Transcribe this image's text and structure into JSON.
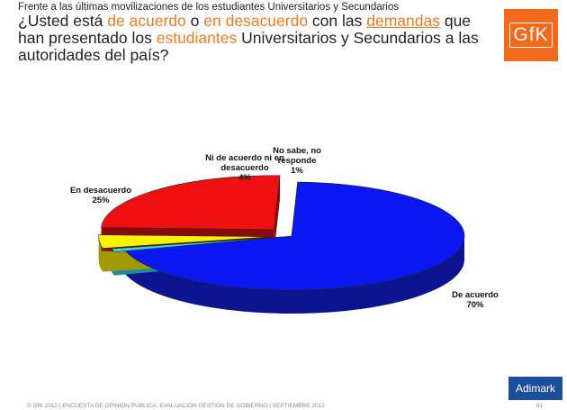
{
  "intro": "Frente a las últimas movilizaciones de los estudiantes Universitarios y Secundarios",
  "question": {
    "parts": [
      {
        "text": "¿Usted  está ",
        "style": "plain"
      },
      {
        "text": "de acuerdo",
        "style": "hl"
      },
      {
        "text": " o ",
        "style": "plain"
      },
      {
        "text": "en desacuerdo",
        "style": "hl"
      },
      {
        "text": " con las ",
        "style": "plain"
      },
      {
        "text": "demandas",
        "style": "hlu"
      },
      {
        "text": " que han presentado los ",
        "style": "plain"
      },
      {
        "text": "estudiantes",
        "style": "hl"
      },
      {
        "text": " Universitarios y Secundarios a las autoridades del país?",
        "style": "plain"
      }
    ]
  },
  "logos": {
    "gfk": "GfK",
    "adimark": "Adimark"
  },
  "footer": "© GfK 2012 | ENCUESTA DE OPINIÓN PÚBLICA: EVALUACIÓN GESTIÓN DE GOBIERNO | SEPTIEMBRE 2012",
  "page_number": "61",
  "colors": {
    "accent": "#f07a1c",
    "gfk_brand": "#f26a1b",
    "adimark_brand": "#1b4f9c"
  },
  "chart_data": {
    "type": "pie",
    "style": "3d-exploded",
    "slices": [
      {
        "key": "de_acuerdo",
        "label": "De acuerdo",
        "value": 70,
        "value_label": "70%",
        "color": "#0a17f0",
        "side_color": "#0c1490"
      },
      {
        "key": "nosabe",
        "label": "No sabe, no responde",
        "value": 1,
        "value_label": "1%",
        "color": "#35d3ee",
        "side_color": "#1d8aa0"
      },
      {
        "key": "ni",
        "label": "Ni de acuerdo ni en desacuerdo",
        "value": 4,
        "value_label": "4%",
        "color": "#f7f200",
        "side_color": "#a09a00"
      },
      {
        "key": "desacuerdo",
        "label": "En desacuerdo",
        "value": 25,
        "value_label": "25%",
        "color": "#ee1010",
        "side_color": "#8a0a0a"
      }
    ],
    "labels": {
      "de_acuerdo": [
        "De acuerdo",
        "70%"
      ],
      "desacuerdo": [
        "En desacuerdo",
        "25%"
      ],
      "ni": [
        "Ni de acuerdo ni en",
        "desacuerdo",
        "4%"
      ],
      "nosabe": [
        "No sabe, no",
        "responde",
        "1%"
      ]
    }
  }
}
